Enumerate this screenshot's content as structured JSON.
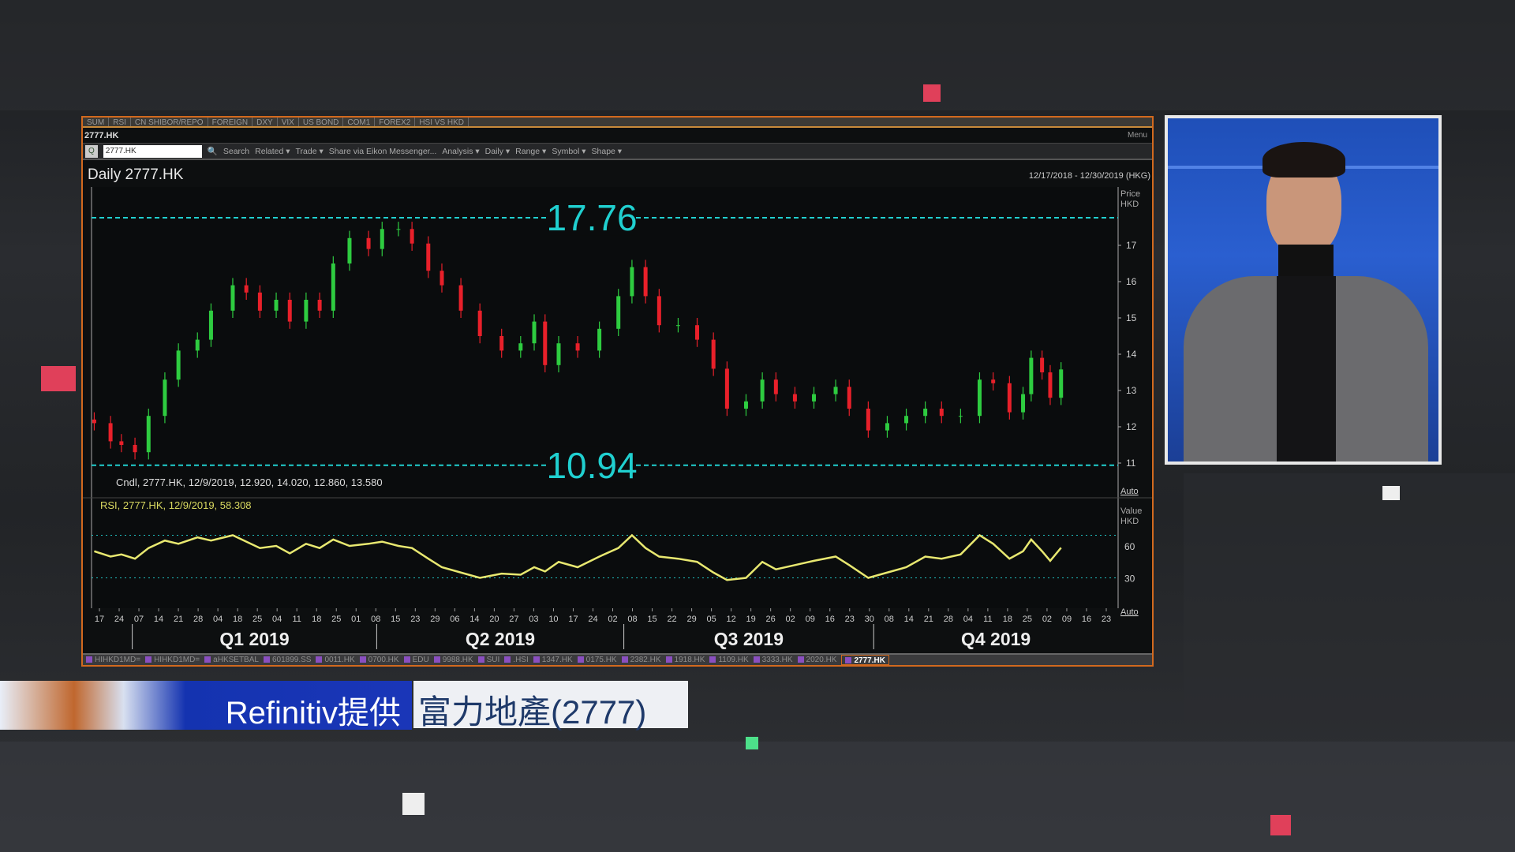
{
  "window": {
    "tabs": [
      "SUM",
      "RSI",
      "CN SHIBOR/REPO",
      "FOREIGN",
      "DXY",
      "VIX",
      "US BOND",
      "COM1",
      "FOREX2",
      "HSI VS HKD"
    ],
    "ric_title": "2777.HK",
    "menu_label": "Menu",
    "toolbar": {
      "symbol_value": "2777.HK",
      "q_label": "Q",
      "items": [
        "Search",
        "Related ▾",
        "Trade ▾",
        "Share via Eikon Messenger...",
        "Analysis ▾",
        "Daily ▾",
        "Range ▾",
        "Symbol ▾",
        "Shape ▾"
      ]
    },
    "bottom_tabs": [
      "HIHKD1MD=",
      "HIHKD1MD=",
      "aHKSETBAL",
      "601899.SS",
      "0011.HK",
      "0700.HK",
      "EDU",
      "9988.HK",
      "SUI",
      ".HSI",
      "1347.HK",
      "0175.HK",
      "2382.HK",
      "1918.HK",
      "1109.HK",
      "3333.HK",
      "2020.HK",
      "2777.HK"
    ],
    "active_bottom_tab": "2777.HK"
  },
  "chart_data": {
    "type": "candlestick",
    "title": "Daily 2777.HK",
    "date_range": "12/17/2018 - 12/30/2019 (HKG)",
    "price_axis_label": "Price\nHKD",
    "rsi_axis_label": "Value\nHKD",
    "auto_label": "Auto",
    "price_ylim": [
      10.5,
      18.2
    ],
    "price_ticks": [
      11,
      12,
      13,
      14,
      15,
      16,
      17
    ],
    "rsi_ticks": [
      60,
      30
    ],
    "rsi_ylim": [
      10,
      85
    ],
    "levels": [
      {
        "value": 17.76,
        "label": "17.76",
        "color": "#20d0d0"
      },
      {
        "value": 10.94,
        "label": "10.94",
        "color": "#20d0d0"
      }
    ],
    "rsi_bands": [
      70,
      30
    ],
    "candle_legend": "Cndl, 2777.HK, 12/9/2019, 12.920, 14.020, 12.860, 13.580",
    "rsi_legend": "RSI, 2777.HK, 12/9/2019, 58.308",
    "x_tick_labels": [
      "17",
      "24",
      "07",
      "14",
      "21",
      "28",
      "04",
      "18",
      "25",
      "04",
      "11",
      "18",
      "25",
      "01",
      "08",
      "15",
      "23",
      "29",
      "06",
      "14",
      "20",
      "27",
      "03",
      "10",
      "17",
      "24",
      "02",
      "08",
      "15",
      "22",
      "29",
      "05",
      "12",
      "19",
      "26",
      "02",
      "09",
      "16",
      "23",
      "30",
      "08",
      "14",
      "21",
      "28",
      "04",
      "11",
      "18",
      "25",
      "02",
      "09",
      "16",
      "23"
    ],
    "quarters": [
      {
        "label": "Q1 2019",
        "start": "2019-01-01"
      },
      {
        "label": "Q2 2019",
        "start": "2019-04-01"
      },
      {
        "label": "Q3 2019",
        "start": "2019-07-01"
      },
      {
        "label": "Q4 2019",
        "start": "2019-10-01"
      }
    ],
    "x_range": [
      "2018-12-17",
      "2019-12-30"
    ],
    "up_color": "#2ecc40",
    "down_color": "#e8202a",
    "rsi_color": "#e8e870",
    "dates": [
      "2018-12-18",
      "2018-12-24",
      "2018-12-28",
      "2019-01-02",
      "2019-01-07",
      "2019-01-13",
      "2019-01-18",
      "2019-01-25",
      "2019-01-30",
      "2019-02-07",
      "2019-02-12",
      "2019-02-17",
      "2019-02-23",
      "2019-02-28",
      "2019-03-06",
      "2019-03-11",
      "2019-03-16",
      "2019-03-22",
      "2019-03-29",
      "2019-04-03",
      "2019-04-09",
      "2019-04-14",
      "2019-04-20",
      "2019-04-25",
      "2019-05-02",
      "2019-05-09",
      "2019-05-17",
      "2019-05-24",
      "2019-05-29",
      "2019-06-02",
      "2019-06-07",
      "2019-06-14",
      "2019-06-22",
      "2019-06-29",
      "2019-07-04",
      "2019-07-09",
      "2019-07-14",
      "2019-07-21",
      "2019-07-28",
      "2019-08-03",
      "2019-08-08",
      "2019-08-15",
      "2019-08-21",
      "2019-08-26",
      "2019-09-02",
      "2019-09-09",
      "2019-09-17",
      "2019-09-22",
      "2019-09-29",
      "2019-10-06",
      "2019-10-13",
      "2019-10-20",
      "2019-10-26",
      "2019-11-02",
      "2019-11-09",
      "2019-11-14",
      "2019-11-20",
      "2019-11-25",
      "2019-11-28",
      "2019-12-02",
      "2019-12-05",
      "2019-12-09"
    ],
    "close": [
      12.1,
      11.6,
      11.5,
      11.3,
      12.3,
      13.3,
      14.1,
      14.4,
      15.2,
      15.9,
      15.7,
      15.2,
      15.5,
      14.9,
      15.5,
      15.2,
      16.5,
      17.2,
      16.9,
      17.45,
      17.45,
      17.05,
      16.3,
      15.9,
      15.2,
      14.5,
      14.1,
      14.3,
      14.9,
      13.7,
      14.3,
      14.1,
      14.7,
      15.6,
      16.4,
      15.6,
      14.8,
      14.8,
      14.4,
      13.6,
      12.5,
      12.7,
      13.3,
      12.9,
      12.7,
      12.9,
      13.1,
      12.5,
      11.9,
      12.1,
      12.3,
      12.5,
      12.3,
      12.3,
      13.3,
      13.2,
      12.4,
      12.9,
      13.9,
      13.5,
      12.8,
      13.58
    ],
    "rsi": [
      55,
      50,
      52,
      48,
      58,
      65,
      62,
      68,
      65,
      70,
      64,
      58,
      60,
      53,
      62,
      58,
      66,
      60,
      62,
      64,
      60,
      58,
      48,
      40,
      35,
      30,
      34,
      33,
      40,
      36,
      45,
      40,
      50,
      58,
      70,
      58,
      50,
      48,
      45,
      35,
      28,
      30,
      45,
      38,
      42,
      46,
      50,
      42,
      30,
      35,
      40,
      50,
      48,
      52,
      70,
      62,
      48,
      55,
      66,
      55,
      46,
      58.3
    ]
  },
  "caption": {
    "source": "Refinitiv提供",
    "stock": "富力地產(2777)"
  }
}
